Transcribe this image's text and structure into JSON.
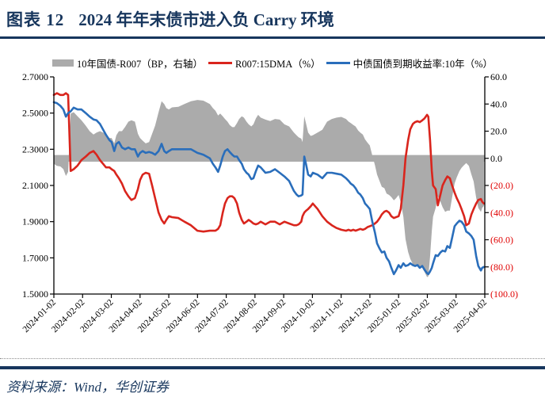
{
  "header": {
    "tag": "图表 12",
    "title": "2024 年年末债市进入负 Carry 环境"
  },
  "source": {
    "label": "资料来源：Wind，华创证券"
  },
  "colors": {
    "navy": "#17365D",
    "red": "#D9251D",
    "blue": "#2A6EBB",
    "gray": "#ABABAB",
    "axis_text": "#000000",
    "axis_negative": "#E00000"
  },
  "chart_data": {
    "type": "combo",
    "title": "2024 年年末债市进入负 Carry 环境",
    "legend_position": "top",
    "grid": false,
    "x_ticks": [
      "2024-01-02",
      "2024-02-02",
      "2024-03-02",
      "2024-04-02",
      "2024-05-02",
      "2024-06-02",
      "2024-07-02",
      "2024-08-02",
      "2024-09-02",
      "2024-10-02",
      "2024-11-02",
      "2024-12-02",
      "2025-01-02",
      "2025-02-02",
      "2025-03-02",
      "2025-04-02"
    ],
    "left_axis": {
      "min": 1.5,
      "max": 2.7,
      "ticks": [
        "2.7000",
        "2.5000",
        "2.3000",
        "2.1000",
        "1.9000",
        "1.7000",
        "1.5000"
      ]
    },
    "right_axis": {
      "min": -100,
      "max": 60,
      "ticks": [
        "60.0",
        "40.0",
        "20.0",
        "0.0",
        "(20.0)",
        "(40.0)",
        "(60.0)",
        "(80.0)",
        "(100.0)"
      ]
    },
    "x_note": "x values are fractions of the axis span 2024-01-02 → 2025-04-02(+)",
    "x": [
      0,
      0.007,
      0.015,
      0.022,
      0.028,
      0.033,
      0.039,
      0.046,
      0.055,
      0.064,
      0.074,
      0.083,
      0.092,
      0.099,
      0.107,
      0.114,
      0.121,
      0.129,
      0.134,
      0.14,
      0.145,
      0.151,
      0.158,
      0.165,
      0.173,
      0.18,
      0.188,
      0.195,
      0.2,
      0.206,
      0.213,
      0.221,
      0.228,
      0.235,
      0.243,
      0.25,
      0.256,
      0.261,
      0.267,
      0.274,
      0.289,
      0.303,
      0.318,
      0.333,
      0.347,
      0.362,
      0.369,
      0.375,
      0.381,
      0.386,
      0.392,
      0.397,
      0.403,
      0.408,
      0.414,
      0.419,
      0.425,
      0.43,
      0.436,
      0.441,
      0.447,
      0.452,
      0.458,
      0.463,
      0.469,
      0.474,
      0.48,
      0.491,
      0.502,
      0.513,
      0.524,
      0.535,
      0.546,
      0.557,
      0.563,
      0.568,
      0.574,
      0.577,
      0.581,
      0.585,
      0.59,
      0.596,
      0.601,
      0.612,
      0.623,
      0.634,
      0.645,
      0.656,
      0.667,
      0.678,
      0.684,
      0.689,
      0.695,
      0.7,
      0.706,
      0.711,
      0.717,
      0.722,
      0.728,
      0.733,
      0.739,
      0.745,
      0.75,
      0.756,
      0.761,
      0.767,
      0.772,
      0.778,
      0.783,
      0.789,
      0.794,
      0.8,
      0.805,
      0.811,
      0.816,
      0.822,
      0.827,
      0.833,
      0.838,
      0.844,
      0.849,
      0.855,
      0.86,
      0.866,
      0.869,
      0.873,
      0.877,
      0.88,
      0.886,
      0.891,
      0.897,
      0.902,
      0.908,
      0.913,
      0.919,
      0.924,
      0.93,
      0.935,
      0.941,
      0.946,
      0.952,
      0.957,
      0.963,
      0.969,
      0.974,
      0.98,
      0.985,
      0.991,
      0.994,
      0.998
    ],
    "series": [
      {
        "name": "10年国债-R007（BP，右轴）",
        "type": "area",
        "axis": "right",
        "color": "#ABABAB",
        "note": "spread = (10Y CGB yield − R007:15DMA) × 100 BP, derived from the two line series"
      },
      {
        "name": "R007:15DMA（%）",
        "type": "line",
        "axis": "left",
        "color": "#D9251D",
        "values": [
          2.6,
          2.61,
          2.6,
          2.6,
          2.61,
          2.6,
          2.18,
          2.19,
          2.21,
          2.24,
          2.26,
          2.28,
          2.29,
          2.27,
          2.24,
          2.22,
          2.2,
          2.2,
          2.19,
          2.18,
          2.16,
          2.14,
          2.11,
          2.07,
          2.04,
          2.02,
          2.03,
          2.08,
          2.13,
          2.16,
          2.17,
          2.165,
          2.1,
          2.03,
          1.95,
          1.91,
          1.89,
          1.91,
          1.93,
          1.925,
          1.92,
          1.9,
          1.88,
          1.85,
          1.845,
          1.85,
          1.85,
          1.85,
          1.86,
          1.88,
          1.95,
          2.0,
          2.03,
          2.04,
          2.04,
          2.03,
          2.0,
          1.95,
          1.91,
          1.89,
          1.9,
          1.91,
          1.9,
          1.89,
          1.885,
          1.89,
          1.9,
          1.885,
          1.9,
          1.9,
          1.885,
          1.9,
          1.89,
          1.88,
          1.88,
          1.885,
          1.9,
          1.93,
          1.95,
          1.96,
          1.97,
          1.985,
          2.0,
          1.97,
          1.93,
          1.9,
          1.88,
          1.865,
          1.855,
          1.85,
          1.855,
          1.85,
          1.855,
          1.85,
          1.855,
          1.86,
          1.855,
          1.86,
          1.87,
          1.875,
          1.88,
          1.89,
          1.9,
          1.92,
          1.94,
          1.955,
          1.96,
          1.95,
          1.93,
          1.92,
          1.925,
          1.93,
          1.97,
          2.1,
          2.25,
          2.35,
          2.41,
          2.44,
          2.45,
          2.455,
          2.45,
          2.46,
          2.47,
          2.49,
          2.48,
          2.35,
          2.18,
          2.1,
          2.08,
          1.99,
          2.05,
          2.1,
          2.13,
          2.15,
          2.14,
          2.1,
          2.06,
          2.03,
          2.0,
          1.97,
          1.93,
          1.88,
          1.89,
          1.94,
          1.97,
          2.0,
          2.02,
          2.025,
          2.01,
          2.0
        ]
      },
      {
        "name": "中债国债到期收益率:10年（%）",
        "type": "line",
        "axis": "left",
        "color": "#2A6EBB",
        "values": [
          2.56,
          2.555,
          2.54,
          2.52,
          2.48,
          2.5,
          2.51,
          2.53,
          2.52,
          2.52,
          2.5,
          2.48,
          2.465,
          2.46,
          2.44,
          2.41,
          2.38,
          2.35,
          2.34,
          2.29,
          2.33,
          2.34,
          2.31,
          2.3,
          2.31,
          2.3,
          2.3,
          2.26,
          2.28,
          2.29,
          2.28,
          2.285,
          2.28,
          2.27,
          2.29,
          2.33,
          2.29,
          2.28,
          2.29,
          2.3,
          2.3,
          2.3,
          2.3,
          2.28,
          2.27,
          2.25,
          2.22,
          2.2,
          2.175,
          2.21,
          2.26,
          2.29,
          2.3,
          2.285,
          2.27,
          2.26,
          2.26,
          2.24,
          2.22,
          2.19,
          2.17,
          2.16,
          2.135,
          2.14,
          2.18,
          2.21,
          2.2,
          2.17,
          2.175,
          2.19,
          2.17,
          2.15,
          2.125,
          2.07,
          2.05,
          2.04,
          2.045,
          2.05,
          2.26,
          2.22,
          2.16,
          2.15,
          2.17,
          2.16,
          2.14,
          2.17,
          2.17,
          2.165,
          2.16,
          2.14,
          2.125,
          2.11,
          2.1,
          2.085,
          2.06,
          2.05,
          2.03,
          2.0,
          1.985,
          1.97,
          1.9,
          1.84,
          1.78,
          1.75,
          1.73,
          1.735,
          1.7,
          1.68,
          1.645,
          1.61,
          1.63,
          1.66,
          1.645,
          1.67,
          1.655,
          1.66,
          1.67,
          1.66,
          1.655,
          1.66,
          1.645,
          1.655,
          1.635,
          1.615,
          1.61,
          1.625,
          1.645,
          1.67,
          1.715,
          1.71,
          1.73,
          1.74,
          1.735,
          1.765,
          1.755,
          1.81,
          1.875,
          1.89,
          1.905,
          1.9,
          1.88,
          1.845,
          1.835,
          1.82,
          1.8,
          1.71,
          1.655,
          1.63,
          1.645,
          1.65
        ]
      }
    ]
  }
}
